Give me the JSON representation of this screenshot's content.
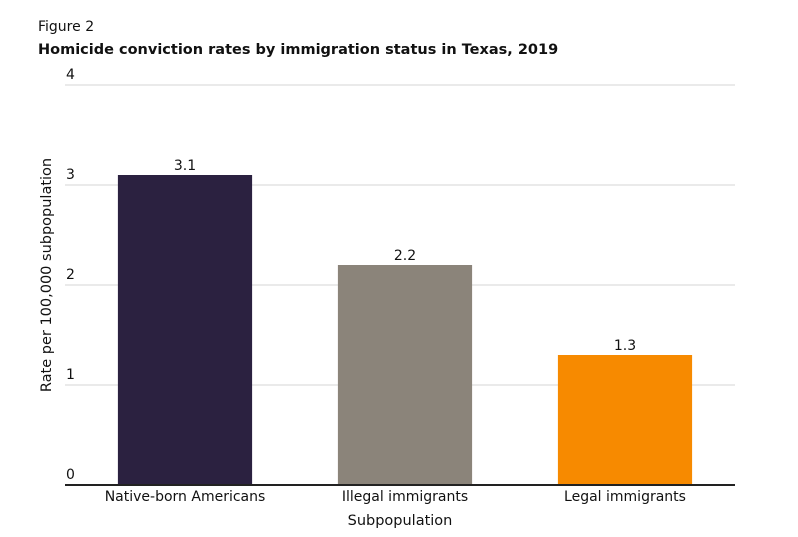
{
  "chart_data": {
    "type": "bar",
    "figure_label": "Figure 2",
    "title": "Homicide conviction rates by immigration status in Texas, 2019",
    "x_label": "Subpopulation",
    "y_label": "Rate per 100,000 subpopulation",
    "categories": [
      "Native-born Americans",
      "Illegal immigrants",
      "Legal immigrants"
    ],
    "values": [
      3.1,
      2.2,
      1.3
    ],
    "colors": [
      "#2b2140",
      "#8b847a",
      "#f78a00"
    ],
    "ylim": [
      0,
      4
    ],
    "yticks": [
      0,
      1,
      2,
      3,
      4
    ],
    "grid": true
  }
}
